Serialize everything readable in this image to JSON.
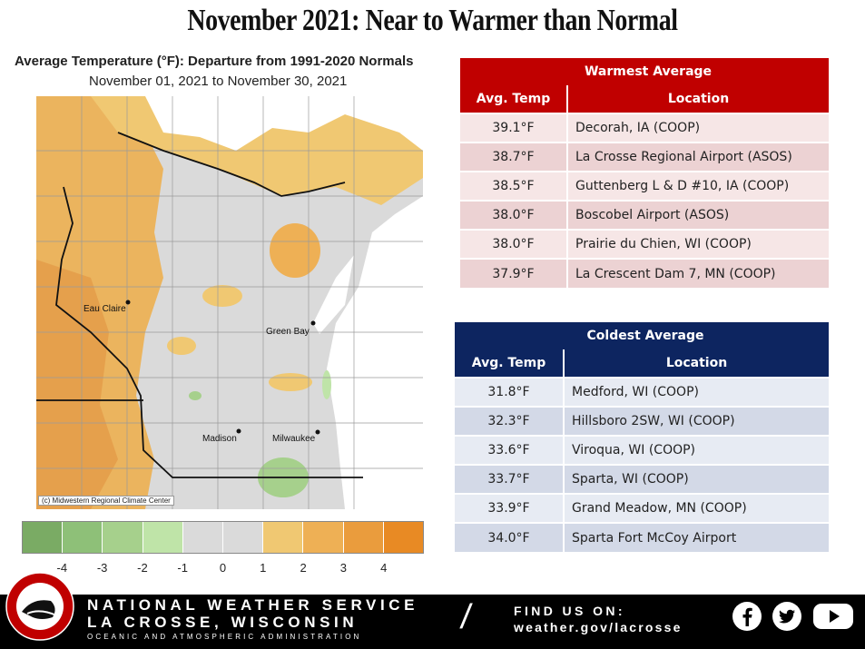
{
  "title": "November 2021: Near to Warmer than Normal",
  "map": {
    "title": "Average Temperature (°F): Departure from 1991-2020 Normals",
    "subtitle": "November 01, 2021 to November 30, 2021",
    "credit": "(c) Midwestern Regional Climate Center",
    "cities": [
      "Eau Claire",
      "Green Bay",
      "Madison",
      "Milwaukee"
    ],
    "legend": {
      "colors": [
        "#7aab64",
        "#8ec078",
        "#a6d08c",
        "#bfe4a8",
        "#dadada",
        "#dadada",
        "#f0c872",
        "#eeb055",
        "#ea9c3d",
        "#e88a24"
      ],
      "ticks": [
        "-4",
        "-3",
        "-2",
        "-1",
        "0",
        "1",
        "2",
        "3",
        "4"
      ]
    }
  },
  "warmest": {
    "caption": "Warmest  Average",
    "headers": [
      "Avg. Temp",
      "Location"
    ],
    "rows": [
      {
        "temp": "39.1°F",
        "location": "Decorah, IA (COOP)"
      },
      {
        "temp": "38.7°F",
        "location": "La Crosse Regional Airport (ASOS)"
      },
      {
        "temp": "38.5°F",
        "location": "Guttenberg  L & D #10, IA (COOP)"
      },
      {
        "temp": "38.0°F",
        "location": "Boscobel Airport (ASOS)"
      },
      {
        "temp": "38.0°F",
        "location": "Prairie du Chien, WI (COOP)"
      },
      {
        "temp": "37.9°F",
        "location": "La Crescent Dam 7, MN (COOP)"
      }
    ]
  },
  "coldest": {
    "caption": "Coldest Average",
    "headers": [
      "Avg. Temp",
      "Location"
    ],
    "rows": [
      {
        "temp": "31.8°F",
        "location": "Medford, WI (COOP)"
      },
      {
        "temp": "32.3°F",
        "location": "Hillsboro 2SW, WI (COOP)"
      },
      {
        "temp": "33.6°F",
        "location": "Viroqua, WI (COOP)"
      },
      {
        "temp": "33.7°F",
        "location": "Sparta, WI (COOP)"
      },
      {
        "temp": "33.9°F",
        "location": "Grand Meadow, MN (COOP)"
      },
      {
        "temp": "34.0°F",
        "location": "Sparta Fort McCoy Airport"
      }
    ]
  },
  "footer": {
    "org": "NATIONAL WEATHER SERVICE",
    "office": "LA CROSSE, WISCONSIN",
    "sub": "OCEANIC AND ATMOSPHERIC ADMINISTRATION",
    "find_us": "FIND US ON:",
    "website": "weather.gov/lacrosse",
    "logo_text": "NATIONAL WEATHER SERVICE · LA CROSSE, WI",
    "icons": [
      "facebook-icon",
      "twitter-icon",
      "youtube-icon"
    ]
  }
}
